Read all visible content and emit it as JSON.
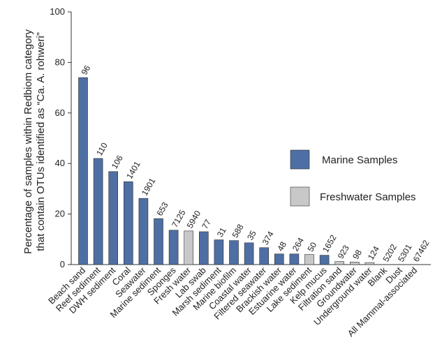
{
  "chart_data": {
    "type": "bar",
    "ylabel_lines": [
      "Percentage of samples within Redbiom category",
      "that contain OTUs identified as “Ca. A. rohweri”"
    ],
    "xlabel": "",
    "ylim": [
      0,
      100
    ],
    "yticks": [
      0,
      20,
      40,
      60,
      80,
      100
    ],
    "grid": false,
    "legend": [
      {
        "name": "Marine Samples",
        "color": "#4e6fa3"
      },
      {
        "name": "Freshwater Samples",
        "color": "#c8c8c8"
      }
    ],
    "legend_position": "right",
    "categories": [
      {
        "label": "Beach sand",
        "value": 74,
        "n": "96",
        "group": "marine"
      },
      {
        "label": "Reef sediment",
        "value": 42,
        "n": "110",
        "group": "marine"
      },
      {
        "label": "DWH sediment",
        "value": 36.8,
        "n": "106",
        "group": "marine"
      },
      {
        "label": "Coral",
        "value": 32.8,
        "n": "1401",
        "group": "marine"
      },
      {
        "label": "Seawater",
        "value": 26.2,
        "n": "1901",
        "group": "marine"
      },
      {
        "label": "Marine sediment",
        "value": 18.2,
        "n": "653",
        "group": "marine"
      },
      {
        "label": "Sponges",
        "value": 13.6,
        "n": "7125",
        "group": "marine"
      },
      {
        "label": "Fresh water",
        "value": 13.3,
        "n": "5940",
        "group": "freshwater"
      },
      {
        "label": "Lab swab",
        "value": 13.0,
        "n": "77",
        "group": "marine"
      },
      {
        "label": "Marsh sediment",
        "value": 9.8,
        "n": "31",
        "group": "marine"
      },
      {
        "label": "Marine biofilm",
        "value": 9.5,
        "n": "588",
        "group": "marine"
      },
      {
        "label": "Coastal water",
        "value": 8.6,
        "n": "35",
        "group": "marine"
      },
      {
        "label": "Filtered seawater",
        "value": 6.7,
        "n": "374",
        "group": "marine"
      },
      {
        "label": "Brackish water",
        "value": 4.2,
        "n": "48",
        "group": "marine"
      },
      {
        "label": "Estuarine water",
        "value": 4.2,
        "n": "264",
        "group": "marine"
      },
      {
        "label": "Lake sediment",
        "value": 4.0,
        "n": "50",
        "group": "freshwater"
      },
      {
        "label": "Kelp mucus",
        "value": 3.7,
        "n": "1652",
        "group": "marine"
      },
      {
        "label": "Filtration sand",
        "value": 1.2,
        "n": "923",
        "group": "freshwater"
      },
      {
        "label": "Groundwater",
        "value": 1.0,
        "n": "98",
        "group": "freshwater"
      },
      {
        "label": "Underground water",
        "value": 0.8,
        "n": "124",
        "group": "freshwater"
      },
      {
        "label": "Blank",
        "value": 0.0,
        "n": "5202",
        "group": "freshwater"
      },
      {
        "label": "Dust",
        "value": 0.0,
        "n": "5301",
        "group": "freshwater"
      },
      {
        "label": "All Mammal-associated",
        "value": 0.0,
        "n": "67462",
        "group": "freshwater"
      }
    ]
  }
}
